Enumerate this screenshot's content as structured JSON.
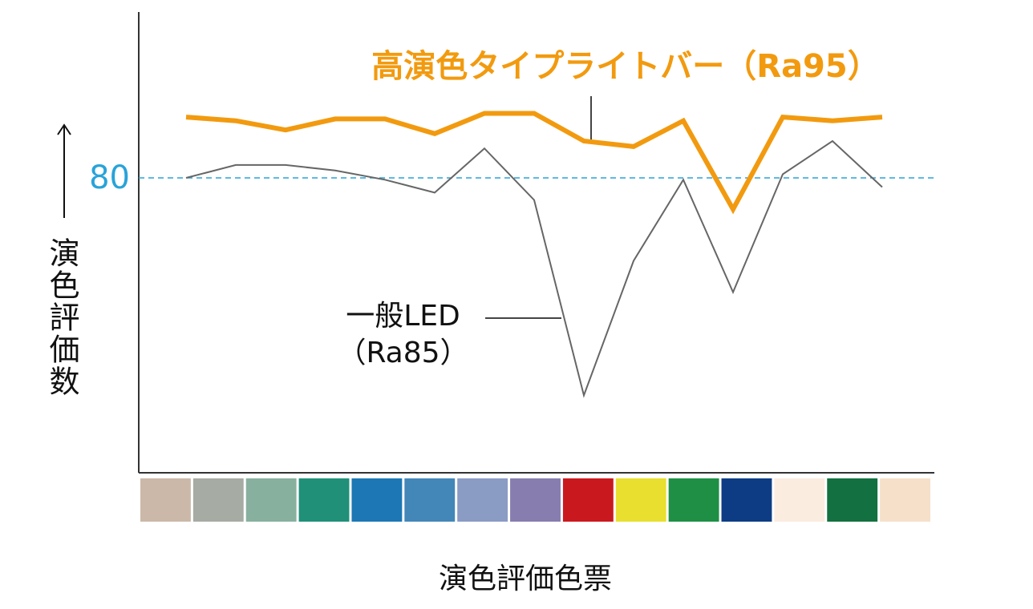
{
  "chart_data": {
    "type": "line",
    "x_label": "演色評価色票",
    "y_label": "演色評価数",
    "categories": [
      null,
      null,
      null,
      null,
      null,
      null,
      null,
      null,
      null,
      null,
      null,
      null,
      null,
      null,
      null
    ],
    "swatch_colors": [
      "#cbb8a8",
      "#a6aba3",
      "#88b09f",
      "#209078",
      "#1c77b4",
      "#4386b8",
      "#8a9bc4",
      "#877dae",
      "#c9191f",
      "#e8df2f",
      "#1e8f45",
      "#0d3c84",
      "#fbece0",
      "#137040",
      "#f6e0c9"
    ],
    "series": [
      {
        "name": "高演色タイプライトバー（Ra95）",
        "color": "#f29a0f",
        "values": [
          96.5,
          95.5,
          93,
          96,
          96,
          92,
          97.5,
          97.5,
          90,
          88.5,
          95.5,
          71.5,
          96.5,
          95.5,
          96.5
        ]
      },
      {
        "name": "一般LED\n（Ra85）",
        "color": "#666666",
        "values": [
          80,
          83.5,
          83.5,
          82,
          79.5,
          76,
          88,
          74,
          21,
          57.5,
          79.5,
          49,
          81,
          90,
          77.5
        ]
      }
    ],
    "ylim": [
      0,
      125
    ],
    "yticks": [
      80
    ],
    "grid_color": "#29a3d9"
  }
}
